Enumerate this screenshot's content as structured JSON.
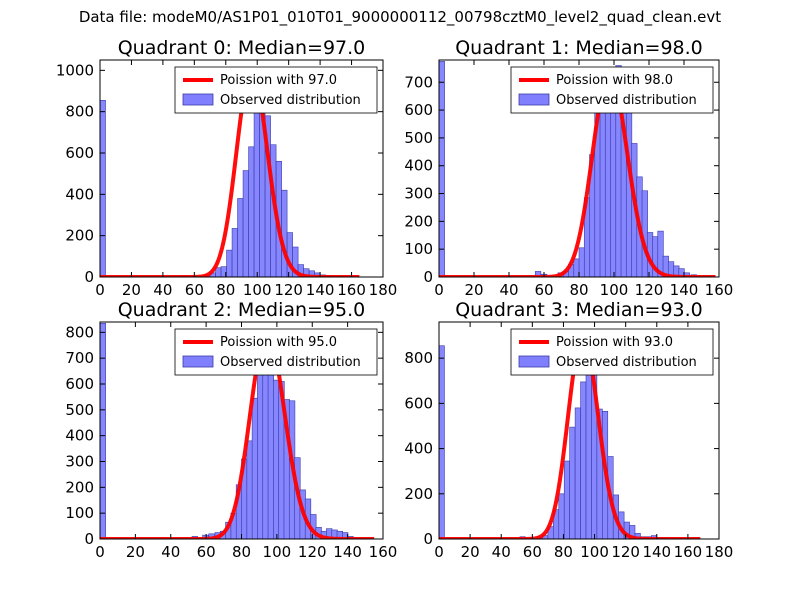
{
  "figure": {
    "title": "Data file: modeM0/AS1P01_010T01_9000000112_00798cztM0_level2_quad_clean.evt"
  },
  "colors": {
    "hist_fill": "#8080ff",
    "hist_edge": "#3a3aa8",
    "poisson_line": "#ff0000"
  },
  "chart_data": [
    {
      "type": "bar",
      "title": "Quadrant 0: Median=97.0",
      "median": 97.0,
      "xlim": [
        0,
        180
      ],
      "ylim": [
        0,
        1050
      ],
      "xticks": [
        0,
        20,
        40,
        60,
        80,
        100,
        120,
        140,
        160,
        180
      ],
      "yticks": [
        0,
        200,
        400,
        600,
        800,
        1000
      ],
      "legend": {
        "position": "top-right",
        "entries": [
          "Poission with 97.0",
          "Observed distribution"
        ]
      },
      "bin_width": 3.5,
      "bins": [
        [
          0,
          855
        ],
        [
          52,
          5
        ],
        [
          59,
          5
        ],
        [
          66.5,
          10
        ],
        [
          70,
          20
        ],
        [
          73.5,
          45
        ],
        [
          77,
          50
        ],
        [
          80.5,
          130
        ],
        [
          84,
          235
        ],
        [
          87.5,
          380
        ],
        [
          91,
          515
        ],
        [
          94.5,
          630
        ],
        [
          98,
          820
        ],
        [
          101.5,
          1000
        ],
        [
          105,
          780
        ],
        [
          108.5,
          640
        ],
        [
          112,
          560
        ],
        [
          115.5,
          420
        ],
        [
          119,
          215
        ],
        [
          122.5,
          145
        ],
        [
          126,
          60
        ],
        [
          129.5,
          40
        ],
        [
          133,
          30
        ],
        [
          136.5,
          20
        ],
        [
          140,
          10
        ],
        [
          143.5,
          8
        ],
        [
          147,
          5
        ],
        [
          150.5,
          4
        ],
        [
          154,
          3
        ]
      ],
      "poisson": {
        "label": "Poission with 97.0",
        "mean": 97.0,
        "peak": 1000,
        "x_range": [
          0,
          165
        ]
      }
    },
    {
      "type": "bar",
      "title": "Quadrant 1: Median=98.0",
      "median": 98.0,
      "xlim": [
        0,
        160
      ],
      "ylim": [
        0,
        780
      ],
      "xticks": [
        0,
        20,
        40,
        60,
        80,
        100,
        120,
        140,
        160
      ],
      "yticks": [
        0,
        100,
        200,
        300,
        400,
        500,
        600,
        700
      ],
      "legend": {
        "position": "top-right",
        "entries": [
          "Poission with 98.0",
          "Observed distribution"
        ]
      },
      "bin_width": 3.2,
      "bins": [
        [
          0,
          775
        ],
        [
          55,
          20
        ],
        [
          58.5,
          10
        ],
        [
          68,
          15
        ],
        [
          71,
          20
        ],
        [
          74,
          45
        ],
        [
          77,
          65
        ],
        [
          80,
          105
        ],
        [
          83,
          285
        ],
        [
          86,
          440
        ],
        [
          89,
          690
        ],
        [
          92,
          640
        ],
        [
          95,
          700
        ],
        [
          98,
          725
        ],
        [
          101,
          760
        ],
        [
          104,
          690
        ],
        [
          107,
          620
        ],
        [
          110,
          480
        ],
        [
          113,
          360
        ],
        [
          116,
          310
        ],
        [
          119,
          160
        ],
        [
          122,
          145
        ],
        [
          125,
          165
        ],
        [
          128,
          75
        ],
        [
          131,
          55
        ],
        [
          134,
          40
        ],
        [
          137,
          30
        ],
        [
          140,
          15
        ],
        [
          144,
          8
        ]
      ],
      "poisson": {
        "label": "Poission with 98.0",
        "mean": 98.0,
        "peak": 735,
        "x_range": [
          0,
          158
        ]
      }
    },
    {
      "type": "bar",
      "title": "Quadrant 2: Median=95.0",
      "median": 95.0,
      "xlim": [
        0,
        160
      ],
      "ylim": [
        0,
        840
      ],
      "xticks": [
        0,
        20,
        40,
        60,
        80,
        100,
        120,
        140,
        160
      ],
      "yticks": [
        0,
        100,
        200,
        300,
        400,
        500,
        600,
        700,
        800
      ],
      "legend": {
        "position": "top-right",
        "entries": [
          "Poission with 95.0",
          "Observed distribution"
        ]
      },
      "bin_width": 3.2,
      "bins": [
        [
          0,
          835
        ],
        [
          52,
          10
        ],
        [
          58,
          15
        ],
        [
          61.5,
          20
        ],
        [
          65,
          25
        ],
        [
          68,
          30
        ],
        [
          71,
          65
        ],
        [
          74,
          100
        ],
        [
          77,
          210
        ],
        [
          80,
          310
        ],
        [
          83,
          380
        ],
        [
          86,
          545
        ],
        [
          89,
          705
        ],
        [
          92,
          800
        ],
        [
          95,
          760
        ],
        [
          98,
          615
        ],
        [
          101,
          610
        ],
        [
          104,
          540
        ],
        [
          107,
          535
        ],
        [
          110,
          315
        ],
        [
          113,
          190
        ],
        [
          116,
          155
        ],
        [
          119,
          95
        ],
        [
          122,
          45
        ],
        [
          125,
          30
        ],
        [
          128,
          40
        ],
        [
          131,
          35
        ],
        [
          134,
          30
        ],
        [
          137,
          25
        ],
        [
          140,
          10
        ]
      ],
      "poisson": {
        "label": "Poission with 95.0",
        "mean": 95.0,
        "peak": 800,
        "x_range": [
          0,
          155
        ]
      }
    },
    {
      "type": "bar",
      "title": "Quadrant 3: Median=93.0",
      "median": 93.0,
      "xlim": [
        0,
        180
      ],
      "ylim": [
        0,
        960
      ],
      "xticks": [
        0,
        20,
        40,
        60,
        80,
        100,
        120,
        140,
        160,
        180
      ],
      "yticks": [
        0,
        200,
        400,
        600,
        800
      ],
      "legend": {
        "position": "top-right",
        "entries": [
          "Poission with 93.0",
          "Observed distribution"
        ]
      },
      "bin_width": 3.5,
      "bins": [
        [
          0,
          855
        ],
        [
          52,
          10
        ],
        [
          63,
          10
        ],
        [
          66.5,
          15
        ],
        [
          70,
          55
        ],
        [
          73.5,
          130
        ],
        [
          77,
          200
        ],
        [
          80.5,
          345
        ],
        [
          84,
          495
        ],
        [
          87.5,
          580
        ],
        [
          91,
          695
        ],
        [
          94.5,
          885
        ],
        [
          98,
          790
        ],
        [
          101.5,
          575
        ],
        [
          105,
          565
        ],
        [
          108.5,
          365
        ],
        [
          112,
          195
        ],
        [
          115.5,
          120
        ],
        [
          119,
          75
        ],
        [
          122.5,
          60
        ],
        [
          126,
          25
        ],
        [
          129.5,
          10
        ],
        [
          133,
          10
        ],
        [
          136.5,
          15
        ],
        [
          140,
          5
        ],
        [
          143.5,
          5
        ]
      ],
      "poisson": {
        "label": "Poission with 93.0",
        "mean": 93.0,
        "peak": 900,
        "x_range": [
          0,
          168
        ]
      }
    }
  ]
}
